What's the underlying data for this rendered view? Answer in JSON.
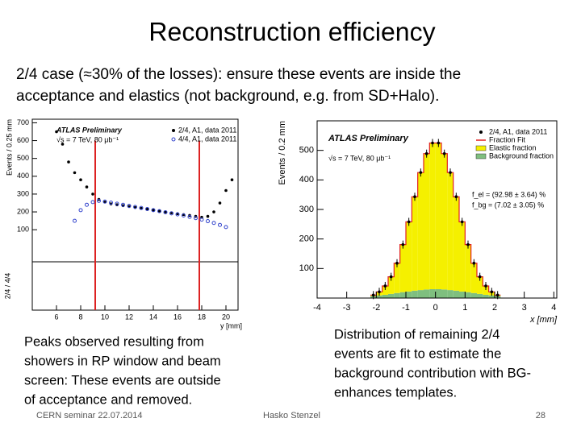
{
  "slide": {
    "title": "Reconstruction efficiency",
    "bullet": [
      "2/4 case (≈30% of the losses): ensure these events are inside the",
      "acceptance and elastics (not background, e.g. from SD+Halo)."
    ],
    "caption_left": [
      "Peaks observed resulting from",
      "showers in RP window and beam",
      "screen: These events are outside",
      "of acceptance and removed."
    ],
    "caption_right": [
      "Distribution of remaining 2/4",
      "events are fit to estimate the",
      "background contribution with BG-",
      "enhances templates."
    ],
    "footer_left": "CERN seminar 22.07.2014",
    "footer_center": "Hasko Stenzel",
    "page_number": "28"
  },
  "chart_data": [
    {
      "type": "scatter",
      "title": "ATLAS Preliminary",
      "subtitle": "√s = 7 TeV, 80 μb⁻¹",
      "x_label": "y [mm]",
      "y_label": "Events / 0.25 mm",
      "ratio_label": "2/4 / 4/4",
      "xlim": [
        4,
        21
      ],
      "xticks": [
        6,
        8,
        10,
        12,
        14,
        16,
        18,
        20
      ],
      "ylim": [
        -80,
        720
      ],
      "yticks": [
        100,
        200,
        300,
        400,
        500,
        600,
        700
      ],
      "cuts": [
        9.2,
        17.8
      ],
      "cut_color": "#d22",
      "series": [
        {
          "name": "2/4, A1, data 2011",
          "color": "#000",
          "x": [
            6,
            6.5,
            7,
            7.5,
            8,
            8.5,
            9,
            9.5,
            10,
            10.5,
            11,
            11.5,
            12,
            12.5,
            13,
            13.5,
            14,
            14.5,
            15,
            15.5,
            16,
            16.5,
            17,
            17.5,
            18,
            18.5,
            19,
            19.5,
            20,
            20.5
          ],
          "values": [
            650,
            580,
            480,
            420,
            380,
            340,
            300,
            270,
            255,
            245,
            240,
            235,
            230,
            225,
            220,
            215,
            210,
            205,
            200,
            195,
            190,
            185,
            180,
            175,
            170,
            175,
            200,
            250,
            320,
            380
          ]
        },
        {
          "name": "4/4, A1, data 2011",
          "color": "#3344cc",
          "x": [
            7.5,
            8,
            8.5,
            9,
            9.5,
            10,
            10.5,
            11,
            11.5,
            12,
            12.5,
            13,
            13.5,
            14,
            14.5,
            15,
            15.5,
            16,
            16.5,
            17,
            17.5,
            18,
            18.5,
            19,
            19.5,
            20
          ],
          "values": [
            150,
            210,
            240,
            255,
            262,
            258,
            252,
            246,
            240,
            234,
            228,
            222,
            216,
            210,
            204,
            198,
            192,
            186,
            180,
            172,
            165,
            157,
            148,
            138,
            127,
            115
          ]
        }
      ]
    },
    {
      "type": "histogram",
      "title": "ATLAS Preliminary",
      "subtitle": "√s = 7 TeV, 80 μb⁻¹",
      "x_label": "x [mm]",
      "y_label": "Events / 0.2 mm",
      "annotations": [
        "f_el = (92.98 ± 3.64) %",
        "f_bg = (7.02 ± 3.05) %"
      ],
      "xlim": [
        -4,
        4.1
      ],
      "xticks": [
        -4,
        -3,
        -2,
        -1,
        0,
        1,
        2,
        3,
        4
      ],
      "ylim": [
        0,
        600
      ],
      "yticks": [
        100,
        200,
        300,
        400,
        500
      ],
      "bins": [
        -2.2,
        -2.0,
        -1.8,
        -1.6,
        -1.4,
        -1.2,
        -1.0,
        -0.8,
        -0.6,
        -0.4,
        -0.2,
        0,
        0.2,
        0.4,
        0.6,
        0.8,
        1.0,
        1.2,
        1.4,
        1.6,
        1.8,
        2.0,
        2.2
      ],
      "series": [
        {
          "name": "2/4, A1, data 2011",
          "color": "#000",
          "values": [
            10,
            21,
            41,
            72,
            118,
            181,
            258,
            343,
            425,
            489,
            525,
            525,
            489,
            425,
            343,
            258,
            181,
            118,
            72,
            41,
            21,
            10
          ]
        },
        {
          "name": "Fraction Fit",
          "color": "#e02020"
        },
        {
          "name": "Elastic fraction",
          "color": "#f5f000",
          "values": [
            3,
            12,
            30,
            58,
            101,
            161,
            236,
            318,
            398,
            460,
            495,
            495,
            460,
            398,
            318,
            236,
            161,
            101,
            58,
            30,
            12,
            3
          ]
        },
        {
          "name": "Background fraction",
          "color": "#7fbf7f",
          "values": [
            7,
            9,
            11,
            14,
            17,
            20,
            22,
            25,
            27,
            29,
            30,
            30,
            29,
            27,
            25,
            22,
            20,
            17,
            14,
            11,
            9,
            7
          ]
        }
      ]
    }
  ]
}
